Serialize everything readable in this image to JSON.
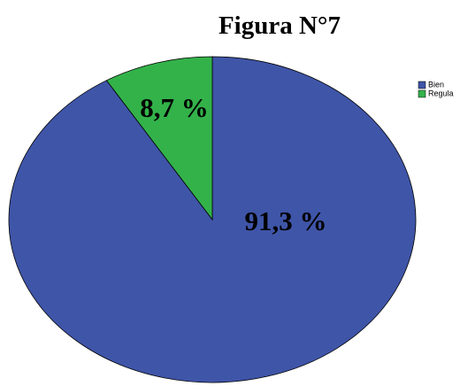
{
  "chart_data": {
    "type": "pie",
    "title": "Figura N°7",
    "categories": [
      "Bien",
      "Regula"
    ],
    "values": [
      91.3,
      8.7
    ],
    "value_labels": [
      "91,3 %",
      "8,7 %"
    ],
    "colors": [
      "#3f55a8",
      "#33b24a"
    ],
    "legend": "top-right"
  }
}
